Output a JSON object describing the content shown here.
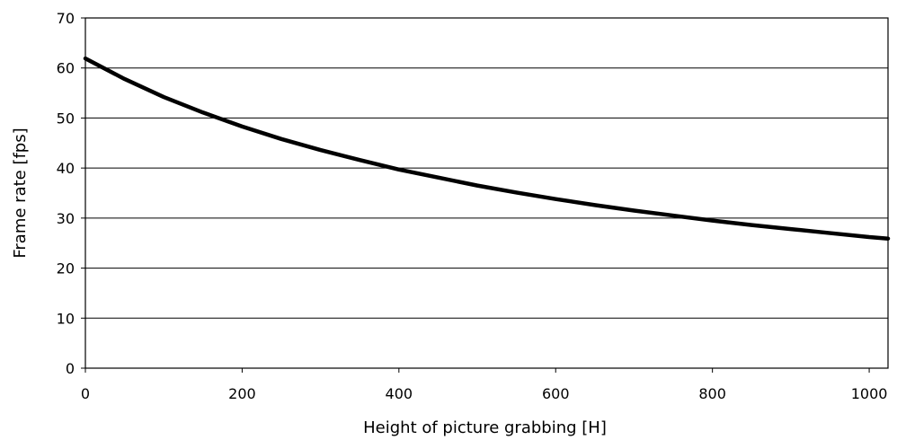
{
  "chart_data": {
    "type": "line",
    "title": "",
    "xlabel": "Height of picture grabbing [H]",
    "ylabel": "Frame rate [fps]",
    "xlim": [
      0,
      1024
    ],
    "ylim": [
      0,
      70
    ],
    "x_ticks": [
      "0",
      "200",
      "400",
      "600",
      "800",
      "1000"
    ],
    "y_ticks": [
      "0",
      "10",
      "20",
      "30",
      "40",
      "50",
      "60",
      "70"
    ],
    "grid": "horizontal",
    "legend": "none",
    "series": [
      {
        "color": "#000000",
        "x": [
          0,
          50,
          100,
          150,
          200,
          250,
          300,
          350,
          400,
          450,
          500,
          550,
          600,
          650,
          700,
          750,
          800,
          850,
          900,
          950,
          1000,
          1024
        ],
        "values": [
          61.9,
          57.8,
          54.2,
          51.1,
          48.3,
          45.8,
          43.6,
          41.6,
          39.7,
          38.1,
          36.5,
          35.1,
          33.8,
          32.6,
          31.5,
          30.5,
          29.5,
          28.6,
          27.8,
          27.0,
          26.2,
          25.9
        ]
      }
    ]
  }
}
